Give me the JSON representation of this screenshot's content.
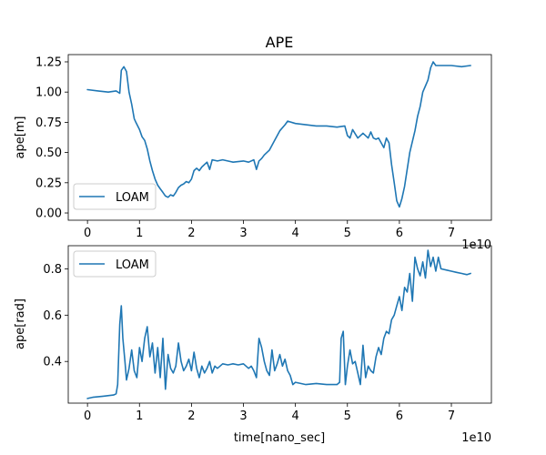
{
  "chart_data": [
    {
      "type": "line",
      "title": "APE",
      "xlabel": "",
      "ylabel": "ape[m]",
      "x_offset_label": "1e10",
      "xlim": [
        -0.37,
        7.77
      ],
      "ylim": [
        -0.06,
        1.31
      ],
      "x_ticks": [
        0,
        1,
        2,
        3,
        4,
        5,
        6,
        7
      ],
      "y_ticks": [
        "0.00",
        "0.25",
        "0.50",
        "0.75",
        "1.00",
        "1.25"
      ],
      "legend": {
        "location": "lower left",
        "entries": [
          "LOAM"
        ]
      },
      "grid": false,
      "series": [
        {
          "name": "LOAM",
          "color": "#1f77b4",
          "x": [
            0,
            0.2,
            0.4,
            0.55,
            0.62,
            0.65,
            0.7,
            0.75,
            0.8,
            0.85,
            0.9,
            0.93,
            1.0,
            1.05,
            1.1,
            1.15,
            1.2,
            1.25,
            1.3,
            1.35,
            1.4,
            1.45,
            1.5,
            1.55,
            1.6,
            1.65,
            1.7,
            1.75,
            1.8,
            1.85,
            1.9,
            1.95,
            2.0,
            2.05,
            2.1,
            2.15,
            2.2,
            2.3,
            2.35,
            2.4,
            2.5,
            2.6,
            2.8,
            3.0,
            3.1,
            3.2,
            3.25,
            3.3,
            3.35,
            3.4,
            3.5,
            3.6,
            3.7,
            3.8,
            3.85,
            4.0,
            4.2,
            4.4,
            4.6,
            4.8,
            4.95,
            5.0,
            5.05,
            5.1,
            5.2,
            5.3,
            5.4,
            5.45,
            5.5,
            5.55,
            5.6,
            5.7,
            5.75,
            5.8,
            5.85,
            5.9,
            5.95,
            6.0,
            6.05,
            6.1,
            6.2,
            6.3,
            6.35,
            6.4,
            6.45,
            6.5,
            6.55,
            6.6,
            6.65,
            6.7,
            6.8,
            7.0,
            7.2,
            7.37
          ],
          "values": [
            1.02,
            1.01,
            1.0,
            1.01,
            0.99,
            1.18,
            1.21,
            1.17,
            1.0,
            0.9,
            0.78,
            0.75,
            0.69,
            0.63,
            0.6,
            0.53,
            0.43,
            0.35,
            0.28,
            0.23,
            0.2,
            0.17,
            0.14,
            0.13,
            0.15,
            0.14,
            0.17,
            0.21,
            0.23,
            0.24,
            0.26,
            0.25,
            0.28,
            0.35,
            0.37,
            0.35,
            0.38,
            0.42,
            0.36,
            0.44,
            0.43,
            0.44,
            0.42,
            0.43,
            0.42,
            0.44,
            0.36,
            0.43,
            0.45,
            0.48,
            0.52,
            0.6,
            0.68,
            0.73,
            0.76,
            0.74,
            0.73,
            0.72,
            0.72,
            0.71,
            0.72,
            0.64,
            0.62,
            0.69,
            0.62,
            0.66,
            0.62,
            0.67,
            0.62,
            0.61,
            0.62,
            0.54,
            0.62,
            0.58,
            0.4,
            0.25,
            0.1,
            0.05,
            0.12,
            0.22,
            0.5,
            0.68,
            0.8,
            0.88,
            1.0,
            1.05,
            1.1,
            1.2,
            1.25,
            1.22,
            1.22,
            1.22,
            1.21,
            1.22
          ]
        }
      ]
    },
    {
      "type": "line",
      "title": "",
      "xlabel": "time[nano_sec]",
      "ylabel": "ape[rad]",
      "x_offset_label": "1e10",
      "xlim": [
        -0.37,
        7.77
      ],
      "ylim": [
        0.22,
        0.9
      ],
      "x_ticks": [
        0,
        1,
        2,
        3,
        4,
        5,
        6,
        7
      ],
      "y_ticks": [
        "0.4",
        "0.6",
        "0.8"
      ],
      "legend": {
        "location": "upper left",
        "entries": [
          "LOAM"
        ]
      },
      "grid": false,
      "series": [
        {
          "name": "LOAM",
          "color": "#1f77b4",
          "x": [
            0,
            0.1,
            0.3,
            0.5,
            0.55,
            0.58,
            0.62,
            0.65,
            0.68,
            0.72,
            0.75,
            0.8,
            0.85,
            0.9,
            0.95,
            1.0,
            1.05,
            1.1,
            1.15,
            1.2,
            1.25,
            1.3,
            1.35,
            1.4,
            1.45,
            1.5,
            1.55,
            1.6,
            1.65,
            1.7,
            1.75,
            1.8,
            1.85,
            1.9,
            1.95,
            2.0,
            2.05,
            2.1,
            2.15,
            2.2,
            2.25,
            2.3,
            2.35,
            2.4,
            2.45,
            2.5,
            2.55,
            2.6,
            2.7,
            2.8,
            2.9,
            3.0,
            3.1,
            3.15,
            3.2,
            3.25,
            3.3,
            3.35,
            3.4,
            3.45,
            3.5,
            3.55,
            3.6,
            3.65,
            3.7,
            3.75,
            3.8,
            3.85,
            3.9,
            3.95,
            4.0,
            4.1,
            4.2,
            4.4,
            4.6,
            4.8,
            4.85,
            4.88,
            4.92,
            4.96,
            5.0,
            5.05,
            5.1,
            5.15,
            5.2,
            5.25,
            5.3,
            5.35,
            5.4,
            5.45,
            5.5,
            5.55,
            5.6,
            5.65,
            5.7,
            5.75,
            5.8,
            5.85,
            5.9,
            5.95,
            6.0,
            6.05,
            6.1,
            6.15,
            6.2,
            6.25,
            6.3,
            6.35,
            6.4,
            6.45,
            6.5,
            6.55,
            6.6,
            6.65,
            6.7,
            6.75,
            6.8,
            6.9,
            7.0,
            7.1,
            7.2,
            7.3,
            7.37
          ],
          "values": [
            0.24,
            0.245,
            0.25,
            0.255,
            0.26,
            0.3,
            0.56,
            0.64,
            0.5,
            0.4,
            0.32,
            0.37,
            0.45,
            0.36,
            0.33,
            0.46,
            0.4,
            0.5,
            0.55,
            0.42,
            0.48,
            0.35,
            0.46,
            0.33,
            0.5,
            0.28,
            0.43,
            0.37,
            0.35,
            0.38,
            0.48,
            0.4,
            0.36,
            0.38,
            0.41,
            0.36,
            0.44,
            0.37,
            0.33,
            0.38,
            0.35,
            0.37,
            0.4,
            0.35,
            0.38,
            0.37,
            0.38,
            0.39,
            0.385,
            0.39,
            0.385,
            0.39,
            0.37,
            0.38,
            0.36,
            0.33,
            0.5,
            0.46,
            0.4,
            0.36,
            0.34,
            0.45,
            0.36,
            0.39,
            0.43,
            0.38,
            0.41,
            0.36,
            0.34,
            0.3,
            0.31,
            0.305,
            0.3,
            0.305,
            0.3,
            0.3,
            0.31,
            0.5,
            0.53,
            0.3,
            0.38,
            0.45,
            0.39,
            0.4,
            0.35,
            0.3,
            0.47,
            0.33,
            0.38,
            0.36,
            0.35,
            0.42,
            0.46,
            0.43,
            0.5,
            0.53,
            0.52,
            0.58,
            0.6,
            0.64,
            0.68,
            0.62,
            0.72,
            0.7,
            0.78,
            0.66,
            0.85,
            0.8,
            0.77,
            0.83,
            0.76,
            0.88,
            0.81,
            0.85,
            0.79,
            0.85,
            0.8,
            0.795,
            0.79,
            0.785,
            0.78,
            0.775,
            0.78
          ]
        }
      ]
    }
  ]
}
